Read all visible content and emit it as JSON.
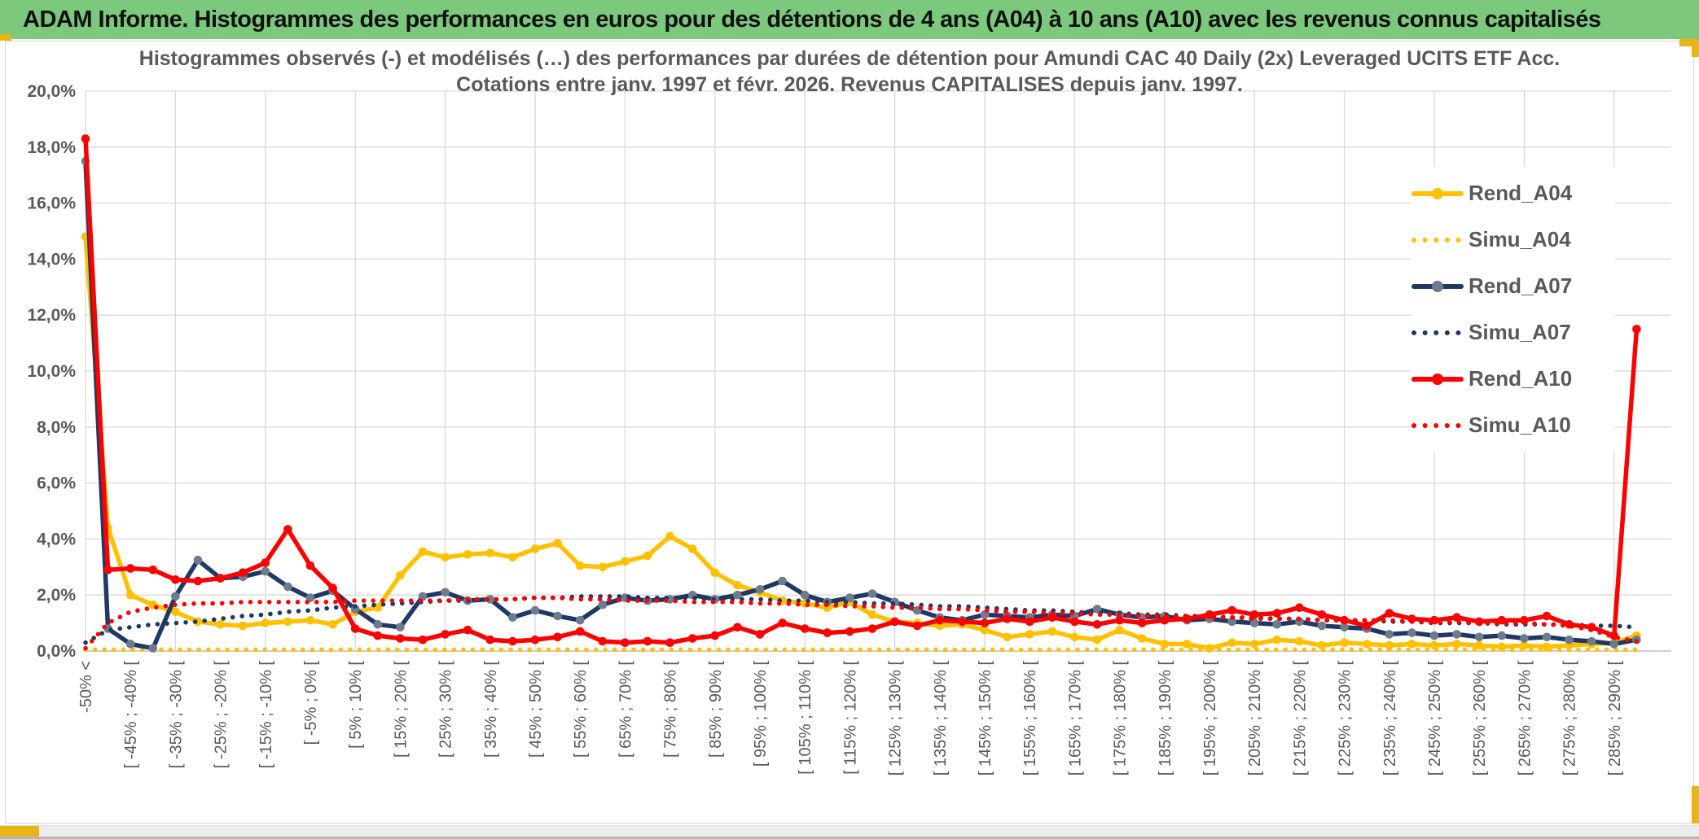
{
  "header": {
    "title": "ADAM Informe. Histogrammes des performances en euros pour des détentions de 4 ans (A04) à 10 ans (A10) avec les revenus connus capitalisés"
  },
  "colors": {
    "header_green": "#7cc87c",
    "gold": "#FFC000",
    "navy": "#1F3864",
    "navy_marker": "#6d7b8d",
    "red": "#FF0000",
    "text_gray": "#595959",
    "gridline": "#d9d9d9",
    "axis": "#bfbfbf",
    "selection_gold": "#e8b416"
  },
  "chart_data": {
    "type": "line",
    "title": "Histogrammes observés (-) et modélisés (…) des performances par durées de détention pour Amundi CAC 40 Daily (2x) Leveraged UCITS ETF Acc.",
    "subtitle": "Cotations entre janv. 1997 et févr. 2026. Revenus CAPITALISES depuis janv. 1997.",
    "xlabel": "",
    "ylabel": "",
    "ylim": [
      0,
      20
    ],
    "ytick_step": 2,
    "ytick_labels": [
      "0,0%",
      "2,0%",
      "4,0%",
      "6,0%",
      "8,0%",
      "10,0%",
      "12,0%",
      "14,0%",
      "16,0%",
      "18,0%",
      "20,0%"
    ],
    "grid": true,
    "legend_position": "right-top",
    "categories": [
      "-50% <",
      "",
      "[ -45% ; -40% [",
      "",
      "[ -35% ; -30% [",
      "",
      "[ -25% ; -20% [",
      "",
      "[ -15% ; -10% [",
      "",
      "[ -5% ; 0% [",
      "",
      "[ 5% ; 10% [",
      "",
      "[ 15% ; 20% [",
      "",
      "[ 25% ; 30% [",
      "",
      "[ 35% ; 40% [",
      "",
      "[ 45% ; 50% [",
      "",
      "[ 55% ; 60% [",
      "",
      "[ 65% ; 70% [",
      "",
      "[ 75% ; 80% [",
      "",
      "[ 85% ; 90% [",
      "",
      "[ 95% ; 100% [",
      "",
      "[ 105% ; 110% [",
      "",
      "[ 115% ; 120% [",
      "",
      "[ 125% ; 130% [",
      "",
      "[ 135% ; 140% [",
      "",
      "[ 145% ; 150% [",
      "",
      "[ 155% ; 160% [",
      "",
      "[ 165% ; 170% [",
      "",
      "[ 175% ; 180% [",
      "",
      "[ 185% ; 190% [",
      "",
      "[ 195% ; 200% [",
      "",
      "[ 205% ; 210% [",
      "",
      "[ 215% ; 220% [",
      "",
      "[ 225% ; 230% [",
      "",
      "[ 235% ; 240% [",
      "",
      "[ 245% ; 250% [",
      "",
      "[ 255% ; 260% [",
      "",
      "[ 265% ; 270% [",
      "",
      "[ 275% ; 280% [",
      "",
      "[ 285% ; 290% [",
      ""
    ],
    "series": [
      {
        "name": "Rend_A04",
        "color": "#FFC000",
        "marker_color": "#FFC000",
        "style": "solid",
        "marker": true,
        "values": [
          14.8,
          4.4,
          2.0,
          1.65,
          1.4,
          1.05,
          0.95,
          0.9,
          1.0,
          1.05,
          1.1,
          0.95,
          1.4,
          1.55,
          2.7,
          3.55,
          3.35,
          3.45,
          3.5,
          3.35,
          3.65,
          3.85,
          3.05,
          3.0,
          3.2,
          3.4,
          4.1,
          3.65,
          2.8,
          2.35,
          2.1,
          1.8,
          1.7,
          1.55,
          1.75,
          1.3,
          1.05,
          1.0,
          0.9,
          0.95,
          0.75,
          0.5,
          0.6,
          0.7,
          0.5,
          0.4,
          0.75,
          0.45,
          0.25,
          0.25,
          0.1,
          0.3,
          0.25,
          0.4,
          0.35,
          0.2,
          0.3,
          0.25,
          0.2,
          0.25,
          0.2,
          0.25,
          0.2,
          0.15,
          0.2,
          0.15,
          0.2,
          0.25,
          0.3,
          0.55
        ]
      },
      {
        "name": "Simu_A04",
        "color": "#FFC000",
        "style": "dotted",
        "marker": false,
        "values": [
          0.05,
          0.05,
          0.05,
          0.05,
          0.05,
          0.05,
          0.05,
          0.05,
          0.05,
          0.05,
          0.05,
          0.05,
          0.05,
          0.05,
          0.05,
          0.05,
          0.05,
          0.05,
          0.05,
          0.05,
          0.05,
          0.05,
          0.05,
          0.05,
          0.05,
          0.05,
          0.05,
          0.05,
          0.05,
          0.05,
          0.05,
          0.05,
          0.05,
          0.05,
          0.05,
          0.05,
          0.05,
          0.05,
          0.05,
          0.05,
          0.05,
          0.05,
          0.05,
          0.05,
          0.05,
          0.05,
          0.05,
          0.05,
          0.05,
          0.05,
          0.05,
          0.05,
          0.05,
          0.05,
          0.05,
          0.05,
          0.05,
          0.05,
          0.05,
          0.05,
          0.05,
          0.05,
          0.05,
          0.05,
          0.05,
          0.05,
          0.05,
          0.05,
          0.05,
          0.05
        ]
      },
      {
        "name": "Rend_A07",
        "color": "#1F3864",
        "marker_color": "#6d7b8d",
        "style": "solid",
        "marker": true,
        "values": [
          17.5,
          0.8,
          0.25,
          0.1,
          1.95,
          3.25,
          2.6,
          2.65,
          2.85,
          2.3,
          1.9,
          2.15,
          1.5,
          0.95,
          0.85,
          1.95,
          2.1,
          1.8,
          1.85,
          1.2,
          1.45,
          1.25,
          1.1,
          1.65,
          1.9,
          1.8,
          1.85,
          2.0,
          1.85,
          2.0,
          2.2,
          2.5,
          2.0,
          1.75,
          1.9,
          2.05,
          1.75,
          1.45,
          1.2,
          1.1,
          1.3,
          1.25,
          1.2,
          1.3,
          1.25,
          1.5,
          1.3,
          1.2,
          1.25,
          1.1,
          1.15,
          1.05,
          1.0,
          0.95,
          1.05,
          0.9,
          0.85,
          0.8,
          0.6,
          0.65,
          0.55,
          0.6,
          0.5,
          0.55,
          0.45,
          0.5,
          0.4,
          0.35,
          0.25,
          0.4
        ]
      },
      {
        "name": "Simu_A07",
        "color": "#1F3864",
        "style": "dotted",
        "marker": false,
        "values": [
          0.3,
          0.75,
          0.85,
          0.95,
          1.0,
          1.05,
          1.15,
          1.25,
          1.3,
          1.4,
          1.45,
          1.55,
          1.6,
          1.65,
          1.7,
          1.75,
          1.8,
          1.8,
          1.85,
          1.85,
          1.9,
          1.9,
          1.95,
          1.95,
          1.95,
          1.9,
          1.9,
          1.9,
          1.85,
          1.85,
          1.85,
          1.8,
          1.8,
          1.75,
          1.75,
          1.7,
          1.7,
          1.65,
          1.6,
          1.6,
          1.55,
          1.5,
          1.45,
          1.45,
          1.4,
          1.35,
          1.35,
          1.3,
          1.3,
          1.25,
          1.25,
          1.2,
          1.2,
          1.15,
          1.15,
          1.1,
          1.1,
          1.1,
          1.05,
          1.05,
          1.0,
          1.0,
          1.0,
          0.95,
          0.95,
          0.95,
          0.95,
          0.9,
          0.9,
          0.85
        ]
      },
      {
        "name": "Rend_A10",
        "color": "#FF0000",
        "marker_color": "#FF0000",
        "style": "solid",
        "marker": true,
        "values": [
          18.3,
          2.9,
          2.95,
          2.9,
          2.55,
          2.5,
          2.6,
          2.8,
          3.15,
          4.35,
          3.05,
          2.25,
          0.8,
          0.55,
          0.45,
          0.4,
          0.6,
          0.75,
          0.4,
          0.35,
          0.4,
          0.5,
          0.7,
          0.35,
          0.3,
          0.35,
          0.3,
          0.45,
          0.55,
          0.85,
          0.6,
          1.0,
          0.8,
          0.65,
          0.7,
          0.8,
          1.05,
          0.9,
          1.1,
          1.05,
          1.0,
          1.15,
          1.05,
          1.2,
          1.05,
          0.95,
          1.1,
          1.0,
          1.1,
          1.15,
          1.3,
          1.45,
          1.3,
          1.35,
          1.55,
          1.3,
          1.1,
          0.9,
          1.35,
          1.15,
          1.1,
          1.2,
          1.05,
          1.1,
          1.1,
          1.25,
          0.95,
          0.85,
          0.55,
          11.5
        ]
      },
      {
        "name": "Simu_A10",
        "color": "#FF0000",
        "style": "dotted",
        "marker": false,
        "values": [
          0.1,
          1.0,
          1.4,
          1.55,
          1.65,
          1.7,
          1.7,
          1.75,
          1.75,
          1.75,
          1.75,
          1.75,
          1.8,
          1.8,
          1.8,
          1.8,
          1.8,
          1.85,
          1.85,
          1.85,
          1.9,
          1.9,
          1.85,
          1.85,
          1.8,
          1.8,
          1.8,
          1.75,
          1.75,
          1.75,
          1.7,
          1.7,
          1.65,
          1.65,
          1.6,
          1.6,
          1.55,
          1.55,
          1.5,
          1.5,
          1.45,
          1.4,
          1.4,
          1.35,
          1.35,
          1.3,
          1.3,
          1.25,
          1.25,
          1.2,
          1.2,
          1.2,
          1.15,
          1.15,
          1.15,
          1.1,
          1.1,
          1.1,
          1.1,
          1.05,
          1.05,
          1.05,
          1.0,
          1.0,
          1.0,
          0.95,
          0.9,
          0.75,
          0.5,
          0.35
        ]
      }
    ]
  }
}
